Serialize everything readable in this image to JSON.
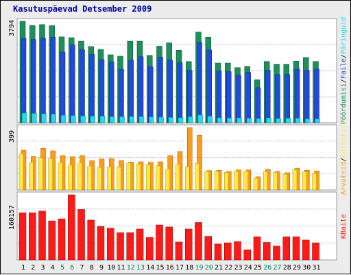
{
  "title": "Kasutuspäevad Detsember 2009",
  "colors": {
    "title": "#0000aa",
    "weekend_day": "#008060",
    "weekday_day": "#000000",
    "visits": "#1e8f5c",
    "pages": "#1f4ae0",
    "hits": "#2ad6ee",
    "visitors": "#ff9b17",
    "unique": "#ffe84a",
    "bandwidth": "#ff1a1a"
  },
  "chart_data": [
    {
      "type": "bar",
      "panel": "traffic",
      "ymax_label": "3794",
      "ylim": [
        0,
        3794
      ],
      "categories": [
        "1",
        "2",
        "3",
        "4",
        "5",
        "6",
        "7",
        "8",
        "9",
        "10",
        "11",
        "12",
        "13",
        "14",
        "15",
        "16",
        "17",
        "18",
        "19",
        "20",
        "21",
        "22",
        "23",
        "24",
        "25",
        "26",
        "27",
        "28",
        "29",
        "30",
        "31"
      ],
      "weekend_indices": [
        4,
        5,
        11,
        12,
        18,
        19,
        25,
        26
      ],
      "series": [
        {
          "name": "Päringuid",
          "values": [
            3794,
            3640,
            3670,
            3630,
            3210,
            3180,
            3050,
            2850,
            2740,
            2540,
            2490,
            3050,
            3050,
            2520,
            2860,
            2990,
            2710,
            2290,
            3390,
            3200,
            2230,
            2230,
            2060,
            2110,
            1610,
            2290,
            2190,
            2190,
            2300,
            2440,
            2290
          ]
        },
        {
          "name": "Faile",
          "values": [
            3160,
            3110,
            3160,
            3200,
            2640,
            2910,
            2730,
            2560,
            2360,
            2280,
            2000,
            2340,
            2470,
            2100,
            2450,
            2350,
            2250,
            1960,
            3010,
            2720,
            1930,
            1910,
            1780,
            1880,
            1310,
            1960,
            1800,
            1800,
            2000,
            1960,
            2010
          ]
        },
        {
          "name": "Pöördumisi",
          "values": [
            360,
            350,
            340,
            330,
            280,
            270,
            260,
            250,
            250,
            230,
            230,
            240,
            240,
            220,
            210,
            200,
            190,
            230,
            290,
            250,
            190,
            180,
            180,
            170,
            160,
            180,
            160,
            170,
            170,
            150,
            150
          ]
        }
      ]
    },
    {
      "type": "bar",
      "panel": "visitors",
      "ymax_label": "399",
      "ylim": [
        0,
        399
      ],
      "categories": [
        "1",
        "2",
        "3",
        "4",
        "5",
        "6",
        "7",
        "8",
        "9",
        "10",
        "11",
        "12",
        "13",
        "14",
        "15",
        "16",
        "17",
        "18",
        "19",
        "20",
        "21",
        "22",
        "23",
        "24",
        "25",
        "26",
        "27",
        "28",
        "29",
        "30",
        "31"
      ],
      "series": [
        {
          "name": "Arvuteid",
          "values": [
            254,
            214,
            266,
            250,
            220,
            212,
            220,
            188,
            198,
            200,
            188,
            178,
            180,
            177,
            180,
            220,
            246,
            399,
            350,
            124,
            126,
            118,
            128,
            128,
            84,
            132,
            118,
            110,
            140,
            126,
            122
          ]
        },
        {
          "name": "Külastusi",
          "values": [
            232,
            176,
            207,
            200,
            174,
            160,
            175,
            153,
            144,
            148,
            147,
            172,
            166,
            162,
            155,
            132,
            163,
            150,
            170,
            118,
            120,
            112,
            120,
            120,
            75,
            117,
            112,
            100,
            130,
            116,
            108
          ]
        }
      ]
    },
    {
      "type": "bar",
      "panel": "bandwidth",
      "ymax_label": "160157",
      "ylim": [
        0,
        160157
      ],
      "categories": [
        "1",
        "2",
        "3",
        "4",
        "5",
        "6",
        "7",
        "8",
        "9",
        "10",
        "11",
        "12",
        "13",
        "14",
        "15",
        "16",
        "17",
        "18",
        "19",
        "20",
        "21",
        "22",
        "23",
        "24",
        "25",
        "26",
        "27",
        "28",
        "29",
        "30",
        "31"
      ],
      "series": [
        {
          "name": "KBaite",
          "values": [
            116000,
            116000,
            120000,
            96000,
            101000,
            160157,
            124000,
            98000,
            82000,
            78000,
            67000,
            67000,
            76000,
            55000,
            86000,
            81000,
            44000,
            76000,
            92000,
            58000,
            39000,
            42000,
            45000,
            25000,
            57000,
            43000,
            34000,
            57000,
            57000,
            49000,
            42000
          ]
        }
      ]
    }
  ],
  "right_labels": {
    "traffic": [
      "Pöördumisi",
      "/",
      "Faile",
      "/",
      "Päringuid"
    ],
    "visitors": [
      "Arvuteid",
      "/",
      "Külastusi"
    ],
    "bandwidth": [
      "KBaite"
    ]
  }
}
